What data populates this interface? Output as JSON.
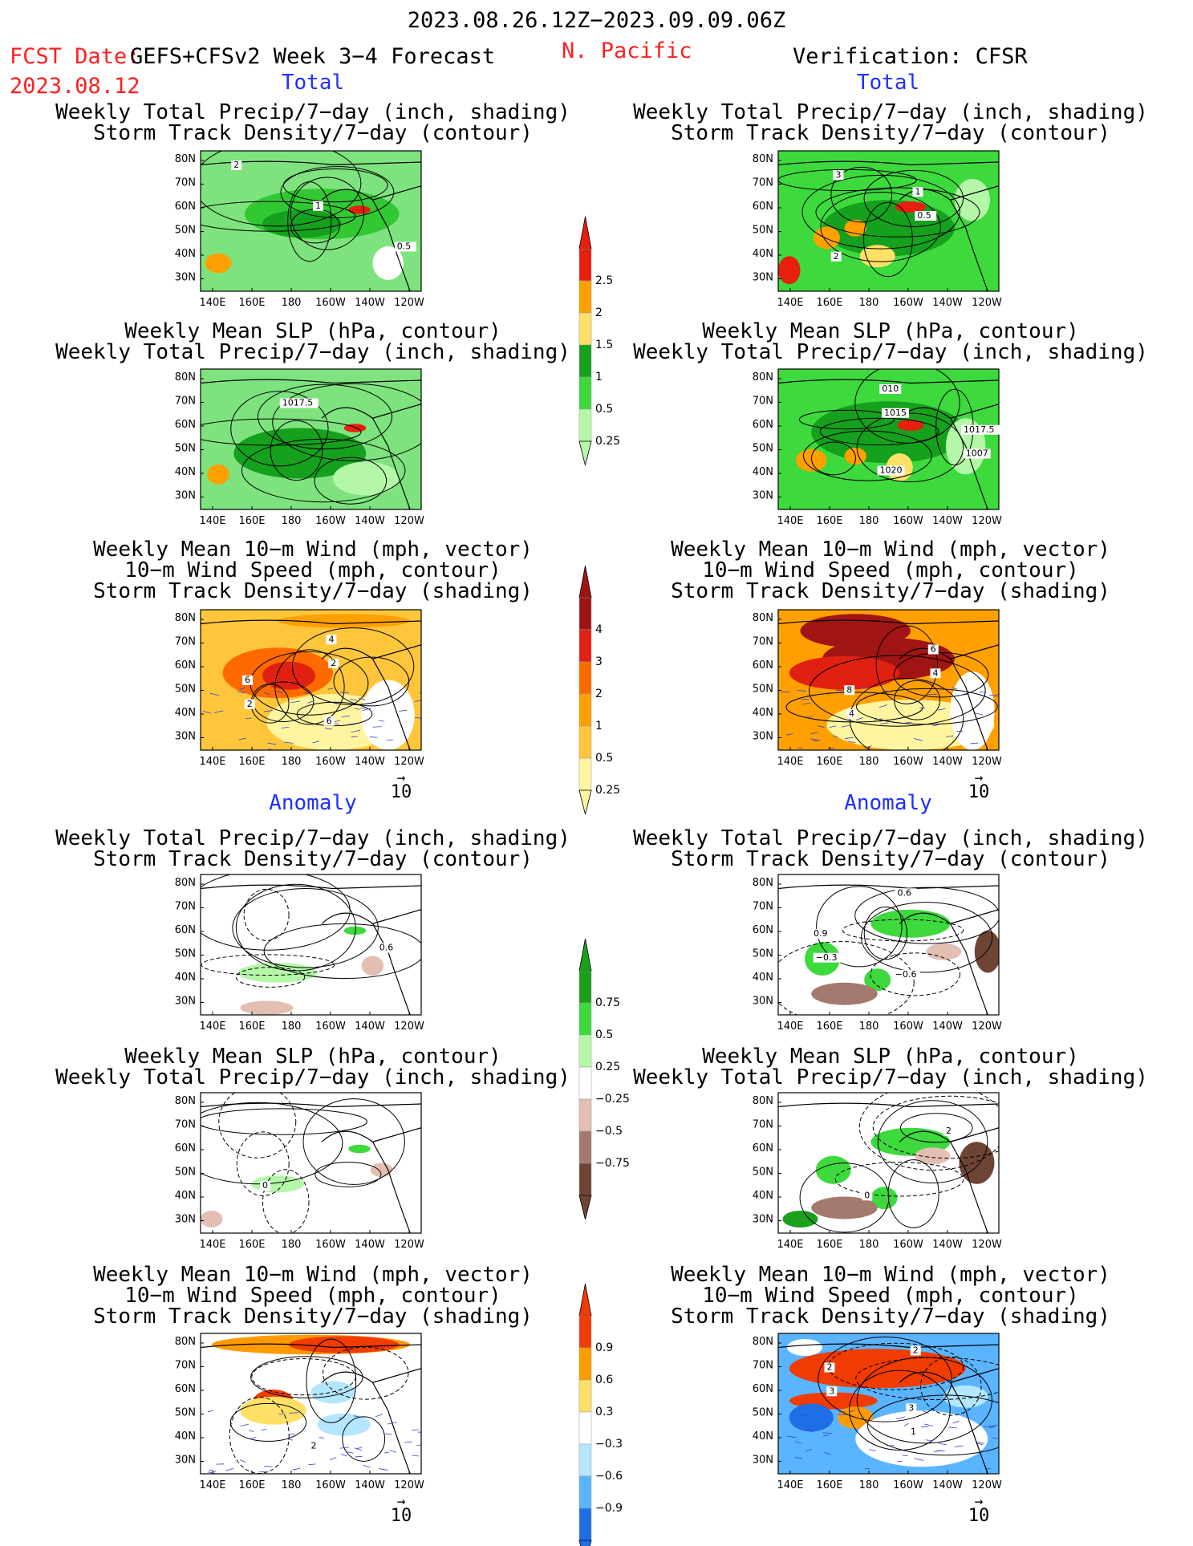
{
  "header": {
    "period": "2023.08.26.12Z−2023.09.09.06Z",
    "fcst_label": "FCST Date:",
    "fcst_model": "GEFS+CFSv2 Week 3−4 Forecast",
    "fcst_date": "2023.08.12",
    "region": "N. Pacific",
    "verification": "Verification: CFSR",
    "left_total": "Total",
    "right_total": "Total",
    "left_anomaly": "Anomaly",
    "right_anomaly": "Anomaly"
  },
  "titles": {
    "precip_track": [
      "Weekly Total Precip/7−day (inch, shading)",
      "Storm Track Density/7−day (contour)"
    ],
    "slp_precip": [
      "Weekly Mean SLP (hPa, contour)",
      "Weekly Total Precip/7−day (inch, shading)"
    ],
    "wind_track": [
      "Weekly Mean 10−m Wind (mph, vector)",
      "10−m Wind Speed (mph, contour)",
      "Storm Track Density/7−day (shading)"
    ]
  },
  "axes": {
    "lat_labels": [
      "80N",
      "70N",
      "60N",
      "50N",
      "40N",
      "30N"
    ],
    "lon_labels": [
      "140E",
      "160E",
      "180",
      "160W",
      "140W",
      "120W"
    ]
  },
  "vector_ref": "10",
  "colorbars": [
    {
      "id": "precip_total",
      "labels": [
        "2.5",
        "2",
        "1.5",
        "1",
        "0.5",
        "0.25"
      ],
      "colors": [
        "#e81e0e",
        "#ffa000",
        "#ffe066",
        "#15a01e",
        "#3dd93d",
        "#b4f7a8"
      ],
      "top_arrow": "#e81e0e"
    },
    {
      "id": "track_total",
      "labels": [
        "4",
        "3",
        "2",
        "1",
        "0.5",
        "0.25"
      ],
      "colors": [
        "#a01414",
        "#e02010",
        "#ff6a00",
        "#ffa000",
        "#ffc63c",
        "#fff5a0"
      ],
      "top_arrow": "#a01414"
    },
    {
      "id": "precip_anom",
      "labels": [
        "0.75",
        "0.5",
        "0.25",
        "−0.25",
        "−0.5",
        "−0.75"
      ],
      "colors": [
        "#1aa01a",
        "#3dd93d",
        "#b4f7a8",
        "#ffffff",
        "#e2bfb2",
        "#a47a6e",
        "#6e4434"
      ],
      "top_arrow": "#1aa01a"
    },
    {
      "id": "track_anom",
      "labels": [
        "0.9",
        "0.6",
        "0.3",
        "−0.3",
        "−0.6",
        "−0.9"
      ],
      "colors": [
        "#f03c00",
        "#ff9a00",
        "#ffe066",
        "#ffffff",
        "#b4e6ff",
        "#5ab4ff",
        "#1e6ee6"
      ],
      "top_arrow": "#f03c00"
    }
  ],
  "panels": [
    {
      "id": "l1",
      "kind": "precip",
      "bg": "#7ee37e",
      "labels": [
        "2",
        "1",
        "0.5"
      ],
      "blobs": [
        [
          "#32c832",
          0.55,
          0.45,
          0.35,
          0.18
        ],
        [
          "#15a01e",
          0.46,
          0.52,
          0.18,
          0.1
        ],
        [
          "#ffa000",
          0.08,
          0.8,
          0.06,
          0.07
        ],
        [
          "#e81e0e",
          0.72,
          0.42,
          0.05,
          0.03
        ],
        [
          "#ffffff",
          0.85,
          0.8,
          0.07,
          0.12
        ]
      ]
    },
    {
      "id": "r1",
      "kind": "precip",
      "bg": "#3dd93d",
      "labels": [
        "3",
        "0.5",
        "2",
        "1"
      ],
      "blobs": [
        [
          "#15a01e",
          0.5,
          0.55,
          0.3,
          0.2
        ],
        [
          "#ffa000",
          0.22,
          0.62,
          0.06,
          0.08
        ],
        [
          "#ffe066",
          0.45,
          0.75,
          0.08,
          0.08
        ],
        [
          "#e81e0e",
          0.6,
          0.4,
          0.07,
          0.04
        ],
        [
          "#e81e0e",
          0.05,
          0.85,
          0.05,
          0.1
        ],
        [
          "#ffa000",
          0.35,
          0.55,
          0.05,
          0.06
        ],
        [
          "#b4f7a8",
          0.88,
          0.35,
          0.08,
          0.15
        ]
      ]
    },
    {
      "id": "l2",
      "kind": "precip",
      "bg": "#7ee37e",
      "labels": [
        "1017.5"
      ],
      "blobs": [
        [
          "#15a01e",
          0.45,
          0.6,
          0.3,
          0.18
        ],
        [
          "#ffa000",
          0.08,
          0.75,
          0.05,
          0.07
        ],
        [
          "#e81e0e",
          0.7,
          0.42,
          0.05,
          0.03
        ],
        [
          "#b4f7a8",
          0.75,
          0.78,
          0.15,
          0.12
        ]
      ]
    },
    {
      "id": "r2",
      "kind": "precip",
      "bg": "#3dd93d",
      "labels": [
        "1015",
        "1007",
        "010",
        "1017.5",
        "1020"
      ],
      "blobs": [
        [
          "#15a01e",
          0.5,
          0.45,
          0.35,
          0.22
        ],
        [
          "#ffa000",
          0.15,
          0.65,
          0.07,
          0.08
        ],
        [
          "#ffe066",
          0.55,
          0.7,
          0.06,
          0.1
        ],
        [
          "#e81e0e",
          0.6,
          0.4,
          0.06,
          0.04
        ],
        [
          "#ffa000",
          0.35,
          0.62,
          0.05,
          0.06
        ],
        [
          "#b4f7a8",
          0.85,
          0.55,
          0.09,
          0.2
        ]
      ]
    },
    {
      "id": "l3",
      "kind": "track",
      "bg": "#ffc63c",
      "labels": [
        "2",
        "2",
        "4",
        "6",
        "6"
      ],
      "blobs": [
        [
          "#ff6a00",
          0.35,
          0.45,
          0.25,
          0.18
        ],
        [
          "#e02010",
          0.4,
          0.47,
          0.12,
          0.1
        ],
        [
          "#ffa000",
          0.65,
          0.08,
          0.3,
          0.05
        ],
        [
          "#fff5a0",
          0.6,
          0.8,
          0.3,
          0.2
        ],
        [
          "#ffffff",
          0.85,
          0.75,
          0.12,
          0.25
        ]
      ]
    },
    {
      "id": "r3",
      "kind": "track",
      "bg": "#ffa000",
      "labels": [
        "4",
        "4",
        "6",
        "8"
      ],
      "blobs": [
        [
          "#a01414",
          0.35,
          0.15,
          0.25,
          0.12
        ],
        [
          "#a01414",
          0.5,
          0.35,
          0.3,
          0.15
        ],
        [
          "#e02010",
          0.3,
          0.45,
          0.25,
          0.12
        ],
        [
          "#fff5a0",
          0.6,
          0.82,
          0.38,
          0.18
        ],
        [
          "#ffffff",
          0.88,
          0.72,
          0.1,
          0.28
        ]
      ]
    },
    {
      "id": "l4",
      "kind": "panom",
      "bg": "#ffffff",
      "labels": [
        "0.6"
      ],
      "blobs": [
        [
          "#b4f7a8",
          0.35,
          0.7,
          0.18,
          0.07
        ],
        [
          "#3dd93d",
          0.7,
          0.4,
          0.05,
          0.03
        ],
        [
          "#e2bfb2",
          0.3,
          0.95,
          0.12,
          0.05
        ],
        [
          "#e2bfb2",
          0.78,
          0.65,
          0.05,
          0.07
        ]
      ]
    },
    {
      "id": "r4",
      "kind": "panom",
      "bg": "#ffffff",
      "labels": [
        "−0.3",
        "0.6",
        "0.9",
        "−0.6"
      ],
      "blobs": [
        [
          "#3dd93d",
          0.6,
          0.35,
          0.18,
          0.1
        ],
        [
          "#3dd93d",
          0.2,
          0.6,
          0.08,
          0.12
        ],
        [
          "#3dd93d",
          0.45,
          0.75,
          0.06,
          0.08
        ],
        [
          "#a47a6e",
          0.3,
          0.85,
          0.15,
          0.08
        ],
        [
          "#6e4434",
          0.95,
          0.55,
          0.06,
          0.15
        ],
        [
          "#e2bfb2",
          0.75,
          0.55,
          0.08,
          0.06
        ]
      ]
    },
    {
      "id": "l5",
      "kind": "panom",
      "bg": "#ffffff",
      "labels": [
        "0"
      ],
      "blobs": [
        [
          "#b4f7a8",
          0.35,
          0.65,
          0.12,
          0.06
        ],
        [
          "#3dd93d",
          0.72,
          0.4,
          0.05,
          0.03
        ],
        [
          "#e2bfb2",
          0.82,
          0.55,
          0.05,
          0.05
        ],
        [
          "#e2bfb2",
          0.05,
          0.9,
          0.05,
          0.06
        ]
      ]
    },
    {
      "id": "r5",
      "kind": "panom",
      "bg": "#ffffff",
      "labels": [
        "0",
        "2"
      ],
      "blobs": [
        [
          "#3dd93d",
          0.6,
          0.35,
          0.18,
          0.1
        ],
        [
          "#3dd93d",
          0.25,
          0.55,
          0.08,
          0.1
        ],
        [
          "#3dd93d",
          0.48,
          0.75,
          0.06,
          0.08
        ],
        [
          "#a47a6e",
          0.3,
          0.82,
          0.15,
          0.08
        ],
        [
          "#6e4434",
          0.9,
          0.5,
          0.08,
          0.15
        ],
        [
          "#e2bfb2",
          0.7,
          0.45,
          0.08,
          0.06
        ],
        [
          "#1aa01a",
          0.1,
          0.9,
          0.08,
          0.06
        ]
      ]
    },
    {
      "id": "l6",
      "kind": "tanom",
      "bg": "#ffffff",
      "labels": [
        "2"
      ],
      "blobs": [
        [
          "#ff9a00",
          0.5,
          0.08,
          0.45,
          0.07
        ],
        [
          "#f03c00",
          0.65,
          0.08,
          0.25,
          0.06
        ],
        [
          "#f03c00",
          0.33,
          0.48,
          0.09,
          0.08
        ],
        [
          "#ffe066",
          0.33,
          0.55,
          0.15,
          0.1
        ],
        [
          "#b4e6ff",
          0.6,
          0.42,
          0.1,
          0.08
        ],
        [
          "#b4e6ff",
          0.65,
          0.65,
          0.12,
          0.08
        ]
      ]
    },
    {
      "id": "r6",
      "kind": "tanom",
      "bg": "#5ab4ff",
      "labels": [
        "2",
        "3",
        "1",
        "2",
        "3"
      ],
      "blobs": [
        [
          "#f03c00",
          0.45,
          0.25,
          0.4,
          0.14
        ],
        [
          "#f03c00",
          0.25,
          0.48,
          0.2,
          0.06
        ],
        [
          "#ff9a00",
          0.35,
          0.6,
          0.08,
          0.08
        ],
        [
          "#1e6ee6",
          0.15,
          0.6,
          0.1,
          0.1
        ],
        [
          "#ffffff",
          0.65,
          0.75,
          0.3,
          0.2
        ],
        [
          "#b4e6ff",
          0.85,
          0.45,
          0.1,
          0.08
        ],
        [
          "#ffffff",
          0.12,
          0.1,
          0.08,
          0.06
        ]
      ]
    }
  ]
}
